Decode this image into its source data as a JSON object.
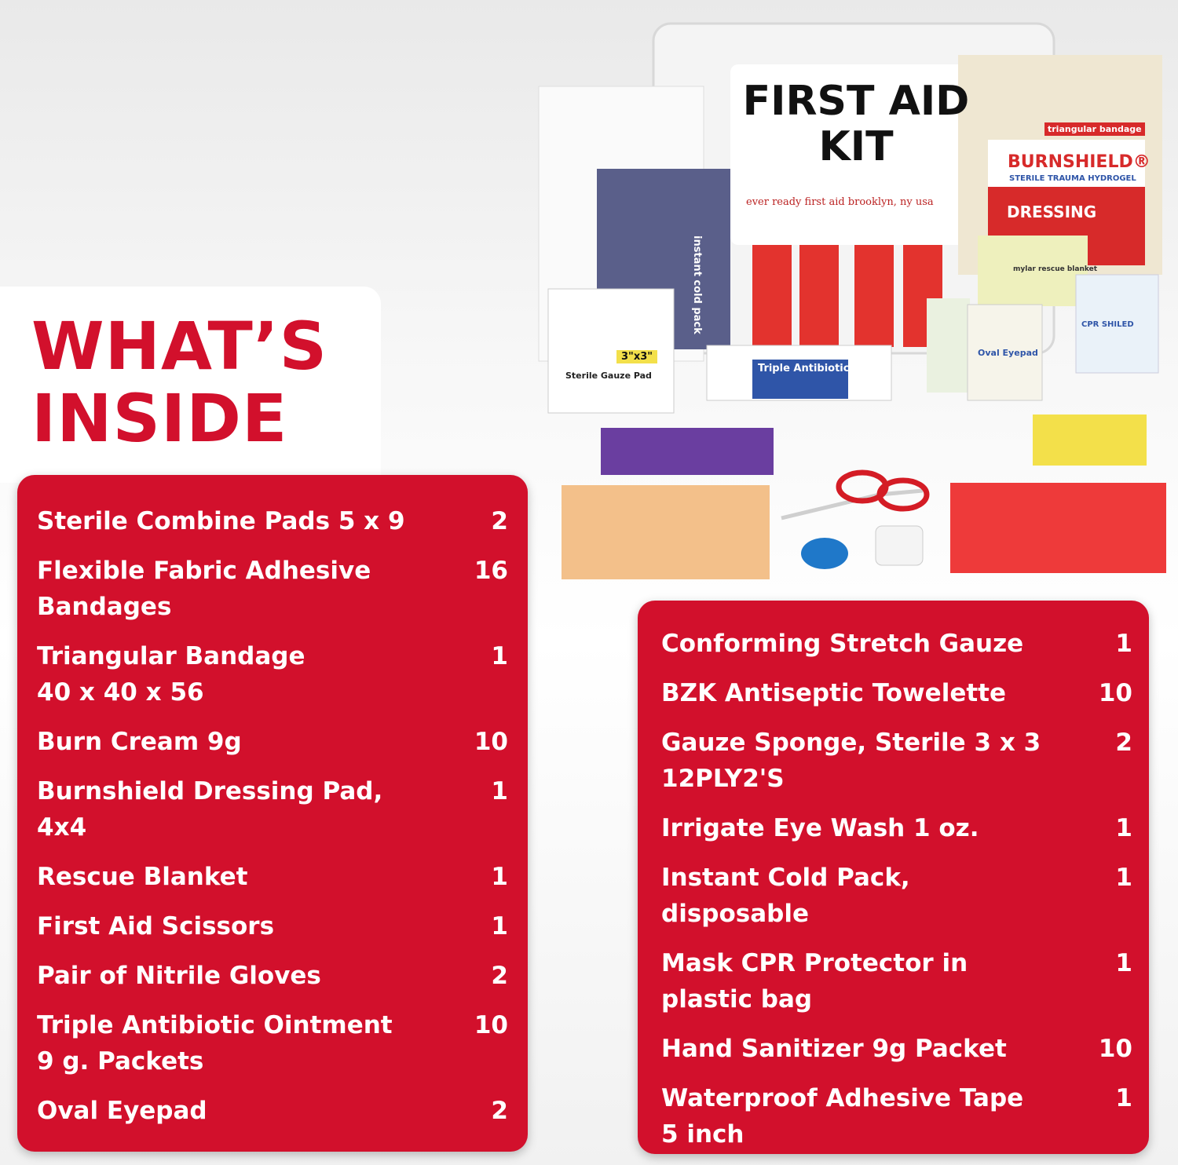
{
  "heading": "WHAT’S\nINSIDE",
  "photo_labels": {
    "kit": "FIRST AID\nKIT",
    "kit_maker": "ever ready first aid   brooklyn, ny   usa",
    "triangular": "triangular bandage",
    "burnshield": "BURNSHIELD®",
    "hydrogel": "STERILE TRAUMA HYDROGEL",
    "dressing": "DRESSING",
    "rescue": "mylar rescue blanket",
    "antibiotic": "Triple Antibiotic",
    "gauze_size": "3\"x3\"",
    "gauze": "Sterile Gauze Pad",
    "cold": "instant cold pack",
    "eyepad": "Oval Eyepad",
    "cpr": "CPR SHILED"
  },
  "left_list": [
    {
      "name": "Sterile Combine Pads 5 x 9",
      "qty": 2
    },
    {
      "name": "Flexible Fabric Adhesive\nBandages",
      "qty": 16
    },
    {
      "name": "Triangular Bandage\n40 x 40 x 56",
      "qty": 1
    },
    {
      "name": "Burn Cream 9g",
      "qty": 10
    },
    {
      "name": "Burnshield Dressing Pad,\n4x4",
      "qty": 1
    },
    {
      "name": "Rescue Blanket",
      "qty": 1
    },
    {
      "name": "First Aid Scissors",
      "qty": 1
    },
    {
      "name": "Pair of Nitrile Gloves",
      "qty": 2
    },
    {
      "name": "Triple Antibiotic Ointment\n9 g. Packets",
      "qty": 10
    },
    {
      "name": "Oval Eyepad",
      "qty": 2
    }
  ],
  "right_list": [
    {
      "name": "Conforming Stretch Gauze",
      "qty": 1
    },
    {
      "name": "BZK Antiseptic Towelette",
      "qty": 10
    },
    {
      "name": "Gauze Sponge, Sterile 3 x 3\n12PLY2'S",
      "qty": 2
    },
    {
      "name": "Irrigate Eye Wash 1 oz.",
      "qty": 1
    },
    {
      "name": "Instant Cold Pack,\ndisposable",
      "qty": 1
    },
    {
      "name": "Mask CPR Protector in\nplastic bag",
      "qty": 1
    },
    {
      "name": "Hand Sanitizer 9g Packet",
      "qty": 10
    },
    {
      "name": "Waterproof Adhesive Tape\n5 inch",
      "qty": 1
    }
  ]
}
